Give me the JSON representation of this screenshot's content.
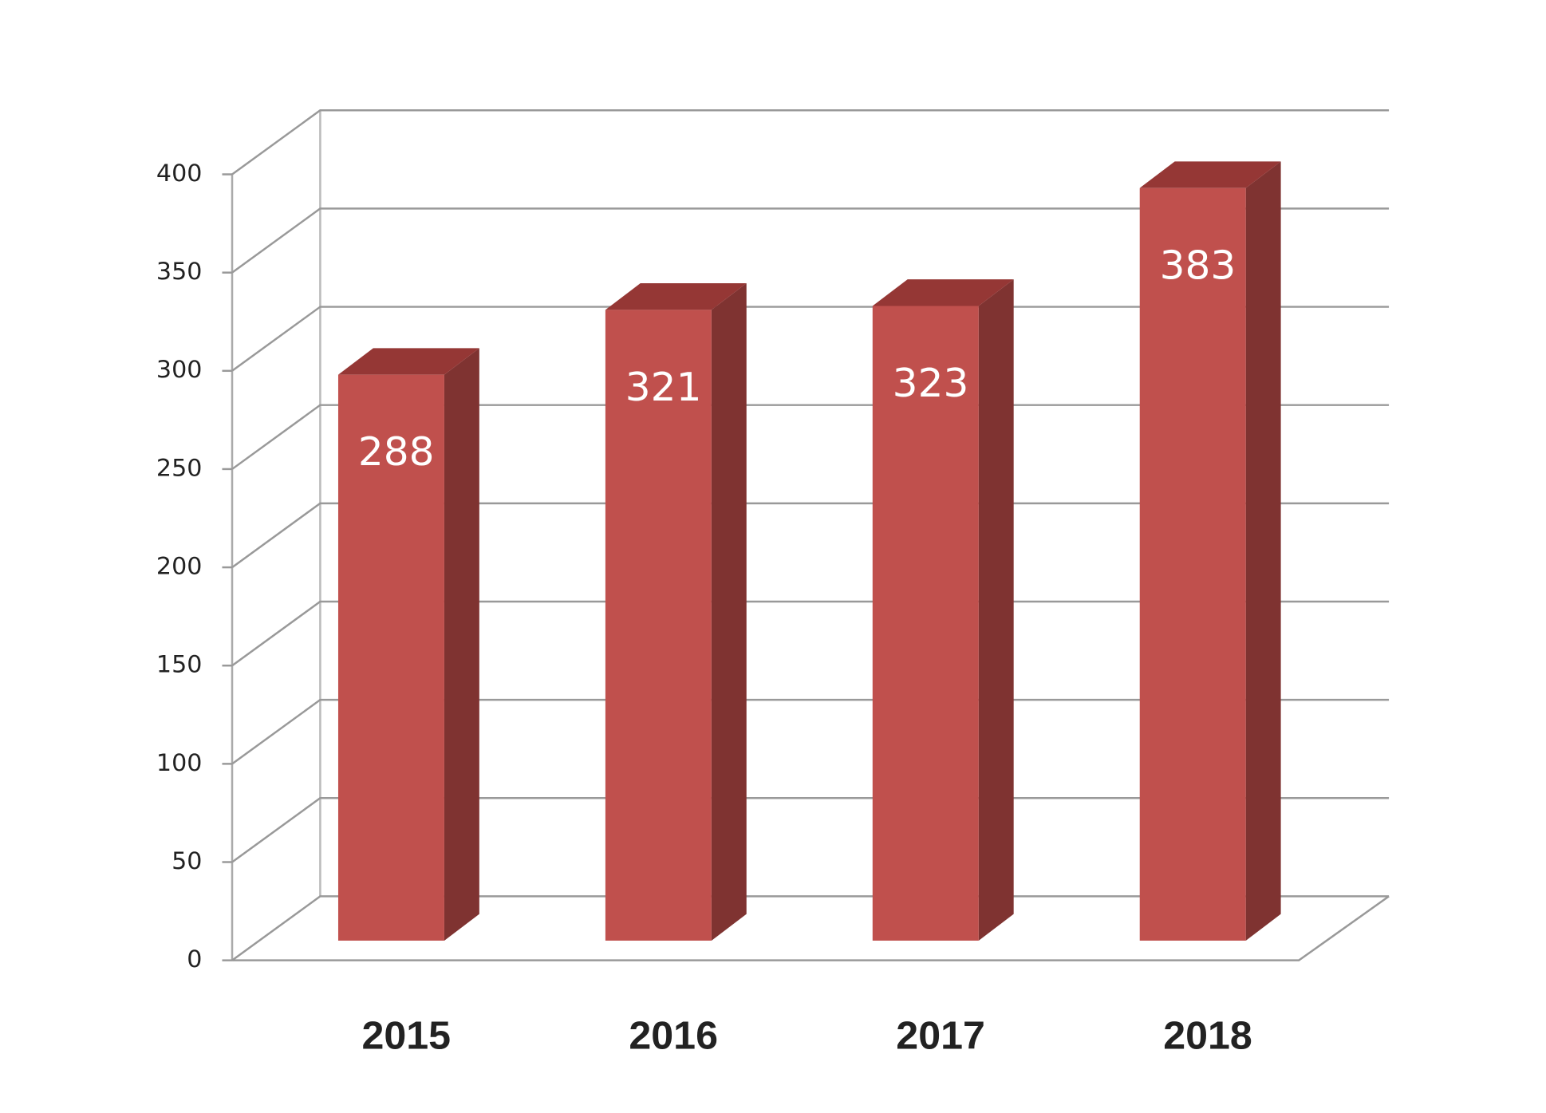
{
  "chart_data": {
    "type": "bar3d",
    "categories": [
      "2015",
      "2016",
      "2017",
      "2018"
    ],
    "values": [
      288,
      321,
      323,
      383
    ],
    "color": "#c0504d",
    "side_color": "#7f3331",
    "top_color": "#953735",
    "ylim": [
      0,
      400
    ],
    "yticks": [
      0,
      50,
      100,
      150,
      200,
      250,
      300,
      350,
      400
    ],
    "grid": true
  }
}
